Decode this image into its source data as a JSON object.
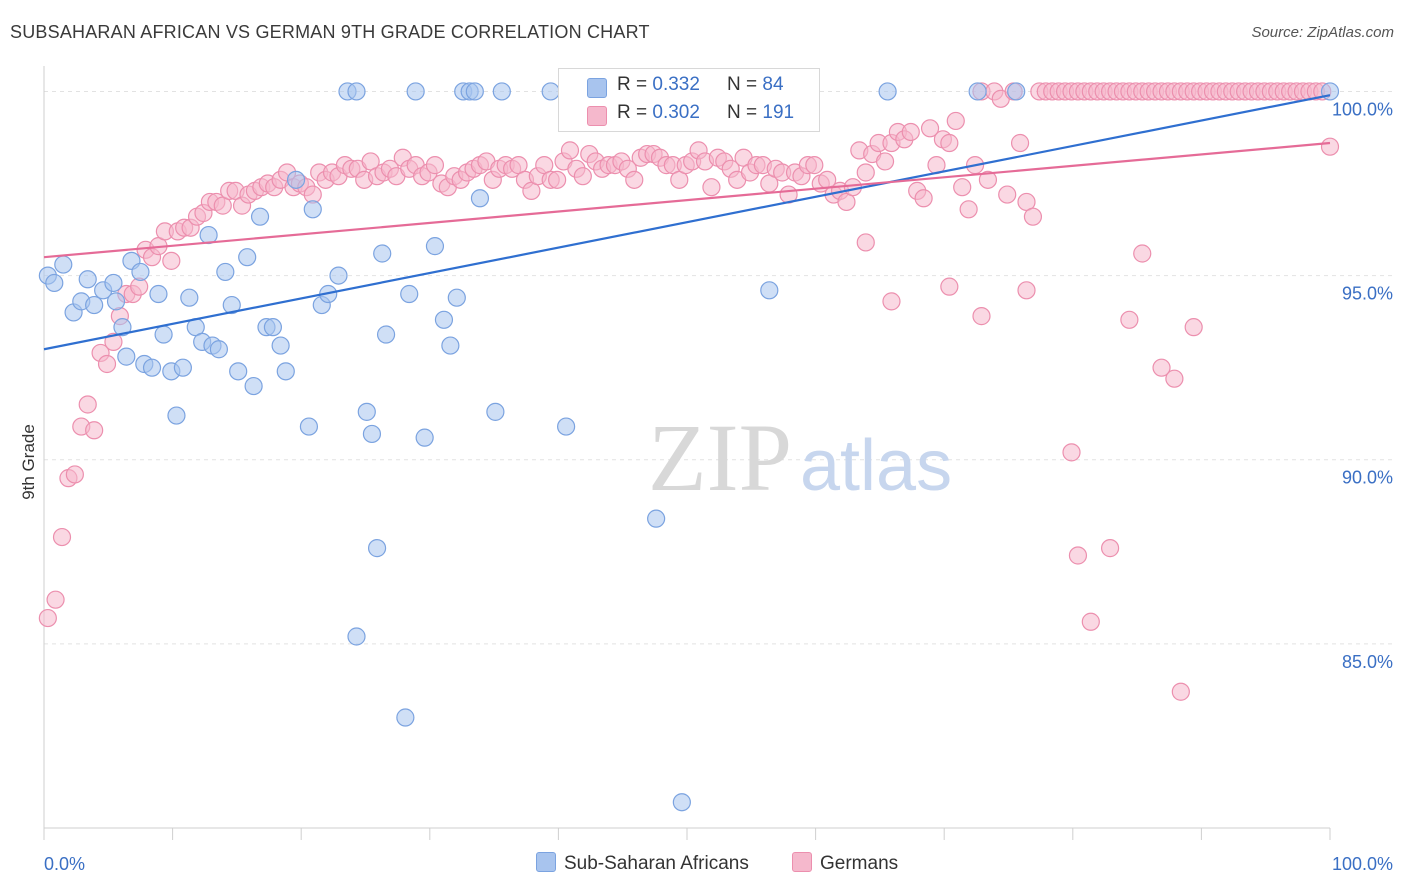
{
  "header": {
    "title": "SUBSAHARAN AFRICAN VS GERMAN 9TH GRADE CORRELATION CHART",
    "source": "Source: ZipAtlas.com"
  },
  "legend": {
    "series1": {
      "r_label": "R = ",
      "r_value": "0.332",
      "n_label": "N = ",
      "n_value": "84"
    },
    "series2": {
      "r_label": "R = ",
      "r_value": "0.302",
      "n_label": "N = ",
      "n_value": "191"
    }
  },
  "bottom_legend": {
    "series1": "Sub-Saharan Africans",
    "series2": "Germans"
  },
  "watermark": {
    "zip": "ZIP",
    "atlas": "atlas"
  },
  "colors": {
    "blue_fill": "#a8c4ee",
    "blue_stroke": "#7ba3e0",
    "blue_line": "#2f6fd0",
    "pink_fill": "#f5b8cc",
    "pink_stroke": "#ec8fae",
    "pink_line": "#e56b97",
    "tick_label": "#3a6fc4"
  },
  "chart_data": {
    "type": "scatter",
    "title": "SUBSAHARAN AFRICAN VS GERMAN 9TH GRADE CORRELATION CHART",
    "xlabel": "",
    "ylabel": "9th Grade",
    "xlim": [
      0,
      100
    ],
    "ylim": [
      80.0,
      100.8
    ],
    "x_tick_labels": [
      "0.0%",
      "100.0%"
    ],
    "y_ticks": [
      85,
      90,
      95,
      100
    ],
    "y_tick_labels": [
      "85.0%",
      "90.0%",
      "95.0%",
      "100.0%"
    ],
    "grid": true,
    "series": [
      {
        "name": "Sub-Saharan Africans",
        "r": 0.332,
        "n": 84,
        "trend": [
          [
            0,
            93.0
          ],
          [
            100,
            99.9
          ]
        ],
        "points": [
          [
            0.3,
            95.0
          ],
          [
            0.8,
            94.8
          ],
          [
            1.5,
            95.3
          ],
          [
            2.3,
            94.0
          ],
          [
            2.9,
            94.3
          ],
          [
            3.4,
            94.9
          ],
          [
            3.9,
            94.2
          ],
          [
            4.6,
            94.6
          ],
          [
            5.6,
            94.3
          ],
          [
            5.4,
            94.8
          ],
          [
            6.1,
            93.6
          ],
          [
            6.4,
            92.8
          ],
          [
            6.8,
            95.4
          ],
          [
            7.5,
            95.1
          ],
          [
            7.8,
            92.6
          ],
          [
            8.4,
            92.5
          ],
          [
            8.9,
            94.5
          ],
          [
            9.3,
            93.4
          ],
          [
            9.9,
            92.4
          ],
          [
            10.3,
            91.2
          ],
          [
            10.8,
            92.5
          ],
          [
            11.3,
            94.4
          ],
          [
            11.8,
            93.6
          ],
          [
            12.3,
            93.2
          ],
          [
            12.8,
            96.1
          ],
          [
            13.1,
            93.1
          ],
          [
            13.6,
            93.0
          ],
          [
            14.1,
            95.1
          ],
          [
            14.6,
            94.2
          ],
          [
            15.1,
            92.4
          ],
          [
            15.8,
            95.5
          ],
          [
            16.3,
            92.0
          ],
          [
            16.8,
            96.6
          ],
          [
            17.3,
            93.6
          ],
          [
            17.8,
            93.6
          ],
          [
            18.4,
            93.1
          ],
          [
            18.8,
            92.4
          ],
          [
            19.6,
            97.6
          ],
          [
            20.6,
            90.9
          ],
          [
            20.9,
            96.8
          ],
          [
            21.6,
            94.2
          ],
          [
            22.1,
            94.5
          ],
          [
            22.9,
            95.0
          ],
          [
            23.6,
            100.0
          ],
          [
            24.3,
            100.0
          ],
          [
            24.3,
            85.2
          ],
          [
            25.1,
            91.3
          ],
          [
            25.5,
            90.7
          ],
          [
            25.9,
            87.6
          ],
          [
            26.3,
            95.6
          ],
          [
            26.6,
            93.4
          ],
          [
            28.1,
            83.0
          ],
          [
            28.4,
            94.5
          ],
          [
            28.9,
            100.0
          ],
          [
            29.6,
            90.6
          ],
          [
            30.4,
            95.8
          ],
          [
            31.1,
            93.8
          ],
          [
            31.6,
            93.1
          ],
          [
            32.1,
            94.4
          ],
          [
            32.6,
            100.0
          ],
          [
            33.1,
            100.0
          ],
          [
            33.5,
            100.0
          ],
          [
            33.9,
            97.1
          ],
          [
            35.1,
            91.3
          ],
          [
            35.6,
            100.0
          ],
          [
            39.4,
            100.0
          ],
          [
            40.6,
            90.9
          ],
          [
            41.3,
            100.0
          ],
          [
            42.6,
            100.0
          ],
          [
            43.6,
            100.0
          ],
          [
            45.6,
            100.0
          ],
          [
            47.6,
            88.4
          ],
          [
            49.6,
            80.7
          ],
          [
            56.4,
            94.6
          ],
          [
            65.6,
            100.0
          ],
          [
            72.6,
            100.0
          ],
          [
            75.6,
            100.0
          ],
          [
            100.0,
            100.0
          ]
        ]
      },
      {
        "name": "Germans",
        "r": 0.302,
        "n": 191,
        "trend": [
          [
            0,
            95.5
          ],
          [
            100,
            98.6
          ]
        ],
        "points": [
          [
            0.3,
            85.7
          ],
          [
            0.9,
            86.2
          ],
          [
            1.4,
            87.9
          ],
          [
            1.9,
            89.5
          ],
          [
            2.4,
            89.6
          ],
          [
            2.9,
            90.9
          ],
          [
            3.4,
            91.5
          ],
          [
            3.9,
            90.8
          ],
          [
            4.4,
            92.9
          ],
          [
            4.9,
            92.6
          ],
          [
            5.4,
            93.2
          ],
          [
            5.9,
            93.9
          ],
          [
            6.4,
            94.5
          ],
          [
            6.9,
            94.5
          ],
          [
            7.4,
            94.7
          ],
          [
            7.9,
            95.7
          ],
          [
            8.4,
            95.5
          ],
          [
            8.9,
            95.8
          ],
          [
            9.4,
            96.2
          ],
          [
            9.9,
            95.4
          ],
          [
            10.4,
            96.2
          ],
          [
            10.9,
            96.3
          ],
          [
            11.4,
            96.3
          ],
          [
            11.9,
            96.6
          ],
          [
            12.4,
            96.7
          ],
          [
            12.9,
            97.0
          ],
          [
            13.4,
            97.0
          ],
          [
            13.9,
            96.9
          ],
          [
            14.4,
            97.3
          ],
          [
            14.9,
            97.3
          ],
          [
            15.4,
            96.9
          ],
          [
            15.9,
            97.2
          ],
          [
            16.4,
            97.3
          ],
          [
            16.9,
            97.4
          ],
          [
            17.4,
            97.5
          ],
          [
            17.9,
            97.4
          ],
          [
            18.4,
            97.6
          ],
          [
            18.9,
            97.8
          ],
          [
            19.4,
            97.4
          ],
          [
            19.9,
            97.5
          ],
          [
            20.4,
            97.4
          ],
          [
            20.9,
            97.2
          ],
          [
            21.4,
            97.8
          ],
          [
            21.9,
            97.6
          ],
          [
            22.4,
            97.8
          ],
          [
            22.9,
            97.7
          ],
          [
            23.4,
            98.0
          ],
          [
            23.9,
            97.9
          ],
          [
            24.4,
            97.9
          ],
          [
            24.9,
            97.6
          ],
          [
            25.4,
            98.1
          ],
          [
            25.9,
            97.7
          ],
          [
            26.4,
            97.8
          ],
          [
            26.9,
            97.9
          ],
          [
            27.4,
            97.7
          ],
          [
            27.9,
            98.2
          ],
          [
            28.4,
            97.9
          ],
          [
            28.9,
            98.0
          ],
          [
            29.4,
            97.7
          ],
          [
            29.9,
            97.8
          ],
          [
            30.4,
            98.0
          ],
          [
            30.9,
            97.5
          ],
          [
            31.4,
            97.4
          ],
          [
            31.9,
            97.7
          ],
          [
            32.4,
            97.6
          ],
          [
            32.9,
            97.8
          ],
          [
            33.4,
            97.9
          ],
          [
            33.9,
            98.0
          ],
          [
            34.4,
            98.1
          ],
          [
            34.9,
            97.6
          ],
          [
            35.4,
            97.9
          ],
          [
            35.9,
            98.0
          ],
          [
            36.4,
            97.9
          ],
          [
            36.9,
            98.0
          ],
          [
            37.4,
            97.6
          ],
          [
            37.9,
            97.3
          ],
          [
            38.4,
            97.7
          ],
          [
            38.9,
            98.0
          ],
          [
            39.4,
            97.6
          ],
          [
            39.9,
            97.6
          ],
          [
            40.4,
            98.1
          ],
          [
            40.9,
            98.4
          ],
          [
            41.4,
            97.9
          ],
          [
            41.9,
            97.7
          ],
          [
            42.4,
            98.3
          ],
          [
            42.9,
            98.1
          ],
          [
            43.4,
            97.9
          ],
          [
            43.9,
            98.0
          ],
          [
            44.4,
            98.0
          ],
          [
            44.9,
            98.1
          ],
          [
            45.4,
            97.9
          ],
          [
            45.9,
            97.6
          ],
          [
            46.4,
            98.2
          ],
          [
            46.9,
            98.3
          ],
          [
            47.4,
            98.3
          ],
          [
            47.9,
            98.2
          ],
          [
            48.4,
            98.0
          ],
          [
            48.9,
            98.0
          ],
          [
            49.4,
            97.6
          ],
          [
            49.9,
            98.0
          ],
          [
            50.4,
            98.1
          ],
          [
            50.9,
            98.4
          ],
          [
            51.4,
            98.1
          ],
          [
            51.9,
            97.4
          ],
          [
            52.4,
            98.2
          ],
          [
            52.9,
            98.1
          ],
          [
            53.4,
            97.9
          ],
          [
            53.9,
            97.6
          ],
          [
            54.4,
            98.2
          ],
          [
            54.9,
            97.8
          ],
          [
            55.4,
            98.0
          ],
          [
            55.9,
            98.0
          ],
          [
            56.4,
            97.5
          ],
          [
            56.9,
            97.9
          ],
          [
            57.4,
            97.8
          ],
          [
            57.9,
            97.2
          ],
          [
            58.4,
            97.8
          ],
          [
            58.9,
            97.7
          ],
          [
            59.4,
            98.0
          ],
          [
            59.9,
            98.0
          ],
          [
            60.4,
            97.5
          ],
          [
            60.9,
            97.6
          ],
          [
            61.4,
            97.2
          ],
          [
            61.9,
            97.3
          ],
          [
            62.4,
            97.0
          ],
          [
            62.9,
            97.4
          ],
          [
            63.4,
            98.4
          ],
          [
            63.9,
            97.8
          ],
          [
            64.4,
            98.3
          ],
          [
            64.9,
            98.6
          ],
          [
            65.4,
            98.1
          ],
          [
            65.9,
            98.6
          ],
          [
            66.4,
            98.9
          ],
          [
            66.9,
            98.7
          ],
          [
            67.4,
            98.9
          ],
          [
            67.9,
            97.3
          ],
          [
            68.4,
            97.1
          ],
          [
            68.9,
            99.0
          ],
          [
            69.4,
            98.0
          ],
          [
            69.9,
            98.7
          ],
          [
            70.4,
            98.6
          ],
          [
            70.9,
            99.2
          ],
          [
            71.4,
            97.4
          ],
          [
            71.9,
            96.8
          ],
          [
            72.4,
            98.0
          ],
          [
            72.9,
            100.0
          ],
          [
            73.4,
            97.6
          ],
          [
            73.9,
            100.0
          ],
          [
            74.4,
            99.8
          ],
          [
            74.9,
            97.2
          ],
          [
            75.4,
            100.0
          ],
          [
            75.9,
            98.6
          ],
          [
            76.4,
            97.0
          ],
          [
            76.9,
            96.6
          ],
          [
            77.4,
            100.0
          ],
          [
            77.9,
            100.0
          ],
          [
            78.4,
            100.0
          ],
          [
            78.9,
            100.0
          ],
          [
            79.4,
            100.0
          ],
          [
            79.9,
            100.0
          ],
          [
            80.4,
            100.0
          ],
          [
            80.9,
            100.0
          ],
          [
            81.4,
            100.0
          ],
          [
            81.9,
            100.0
          ],
          [
            82.4,
            100.0
          ],
          [
            82.9,
            100.0
          ],
          [
            83.4,
            100.0
          ],
          [
            83.9,
            100.0
          ],
          [
            84.4,
            100.0
          ],
          [
            84.9,
            100.0
          ],
          [
            85.4,
            100.0
          ],
          [
            85.9,
            100.0
          ],
          [
            86.4,
            100.0
          ],
          [
            86.9,
            100.0
          ],
          [
            87.4,
            100.0
          ],
          [
            87.9,
            100.0
          ],
          [
            88.4,
            100.0
          ],
          [
            88.9,
            100.0
          ],
          [
            89.4,
            100.0
          ],
          [
            89.9,
            100.0
          ],
          [
            90.4,
            100.0
          ],
          [
            90.9,
            100.0
          ],
          [
            91.4,
            100.0
          ],
          [
            91.9,
            100.0
          ],
          [
            92.4,
            100.0
          ],
          [
            92.9,
            100.0
          ],
          [
            93.4,
            100.0
          ],
          [
            93.9,
            100.0
          ],
          [
            94.4,
            100.0
          ],
          [
            94.9,
            100.0
          ],
          [
            95.4,
            100.0
          ],
          [
            95.9,
            100.0
          ],
          [
            96.4,
            100.0
          ],
          [
            96.9,
            100.0
          ],
          [
            97.4,
            100.0
          ],
          [
            97.9,
            100.0
          ],
          [
            98.4,
            100.0
          ],
          [
            98.9,
            100.0
          ],
          [
            99.4,
            100.0
          ],
          [
            100.0,
            98.5
          ],
          [
            63.9,
            95.9
          ],
          [
            65.9,
            94.3
          ],
          [
            70.4,
            94.7
          ],
          [
            72.9,
            93.9
          ],
          [
            76.4,
            94.6
          ],
          [
            79.9,
            90.2
          ],
          [
            80.4,
            87.4
          ],
          [
            81.4,
            85.6
          ],
          [
            82.9,
            87.6
          ],
          [
            84.4,
            93.8
          ],
          [
            85.4,
            95.6
          ],
          [
            86.9,
            92.5
          ],
          [
            87.9,
            92.2
          ],
          [
            88.4,
            83.7
          ],
          [
            89.4,
            93.6
          ]
        ]
      }
    ]
  }
}
